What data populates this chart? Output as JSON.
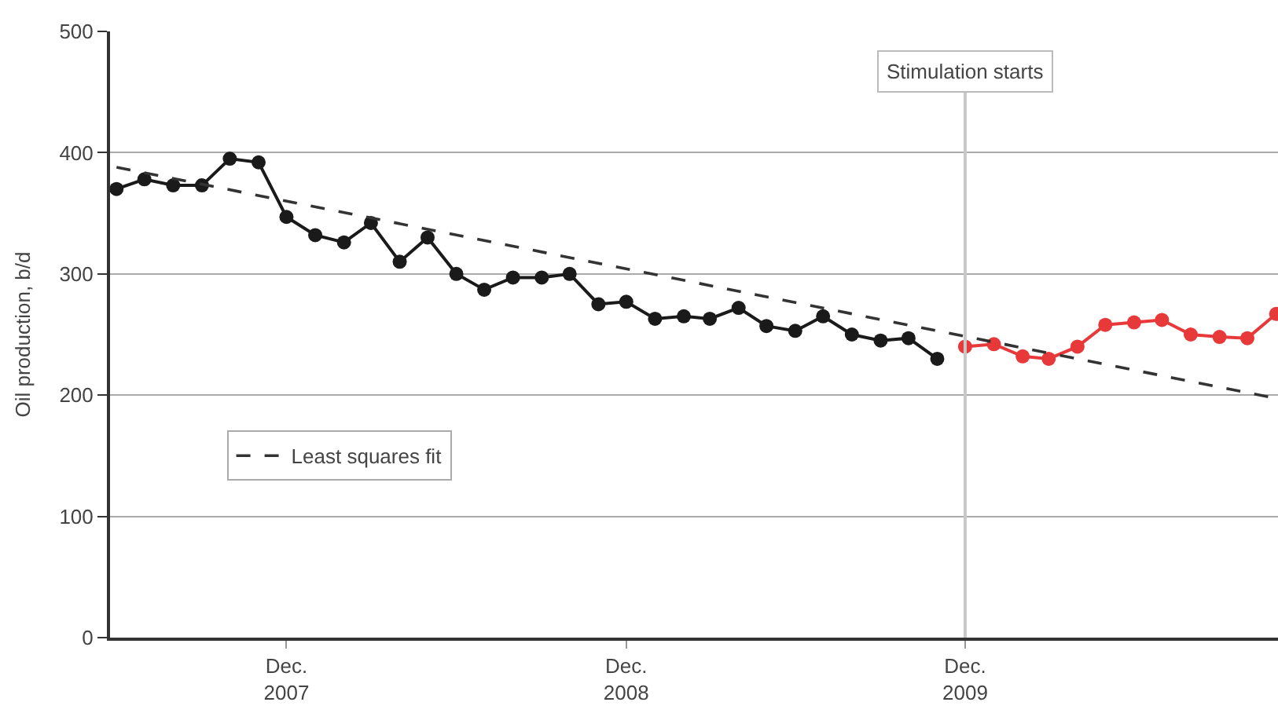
{
  "chart_data": {
    "type": "line",
    "ylabel": "Oil production, b/d",
    "xlim": [
      "2007-05-25",
      "2010-11-03"
    ],
    "ylim": [
      0,
      500
    ],
    "xticks": [
      {
        "value": "2007-12-01",
        "label": "Dec.\n2007"
      },
      {
        "value": "2008-12-01",
        "label": "Dec.\n2008"
      },
      {
        "value": "2009-12-01",
        "label": "Dec.\n2009"
      }
    ],
    "yticks": [
      0,
      100,
      200,
      300,
      400,
      500
    ],
    "grid": "y",
    "legend": "left",
    "marker": "circle",
    "line_style": "solid",
    "series": [
      {
        "color": "#1a1a1a",
        "x": [
          "2007-06",
          "2007-07",
          "2007-08",
          "2007-09",
          "2007-10",
          "2007-11",
          "2007-12",
          "2008-01",
          "2008-02",
          "2008-03",
          "2008-04",
          "2008-05",
          "2008-06",
          "2008-07",
          "2008-08",
          "2008-09",
          "2008-10",
          "2008-11",
          "2008-12",
          "2009-01",
          "2009-02",
          "2009-03",
          "2009-04",
          "2009-05",
          "2009-06",
          "2009-07",
          "2009-08",
          "2009-09",
          "2009-10",
          "2009-11"
        ],
        "values": [
          370,
          378,
          373,
          373,
          395,
          392,
          347,
          332,
          326,
          342,
          310,
          330,
          300,
          287,
          297,
          297,
          300,
          275,
          277,
          263,
          265,
          263,
          272,
          257,
          253,
          265,
          250,
          245,
          247,
          230
        ]
      },
      {
        "color": "#e8393a",
        "x": [
          "2009-12",
          "2010-01",
          "2010-02",
          "2010-03",
          "2010-04",
          "2010-05",
          "2010-06",
          "2010-07",
          "2010-08",
          "2010-09",
          "2010-10",
          "2010-11"
        ],
        "values": [
          240,
          242,
          232,
          230,
          240,
          258,
          260,
          262,
          250,
          248,
          247,
          267
        ]
      },
      {
        "name": "Least squares fit",
        "color": "#333333",
        "marker": "none",
        "line_style": "dashed",
        "x": [
          "2007-06-01",
          "2010-11-03"
        ],
        "values": [
          388,
          197
        ]
      }
    ],
    "ref_lines": [
      {
        "axis": "x",
        "value": "2009-12-01",
        "label": "Stimulation starts",
        "color": "#c8c8c8"
      }
    ]
  }
}
